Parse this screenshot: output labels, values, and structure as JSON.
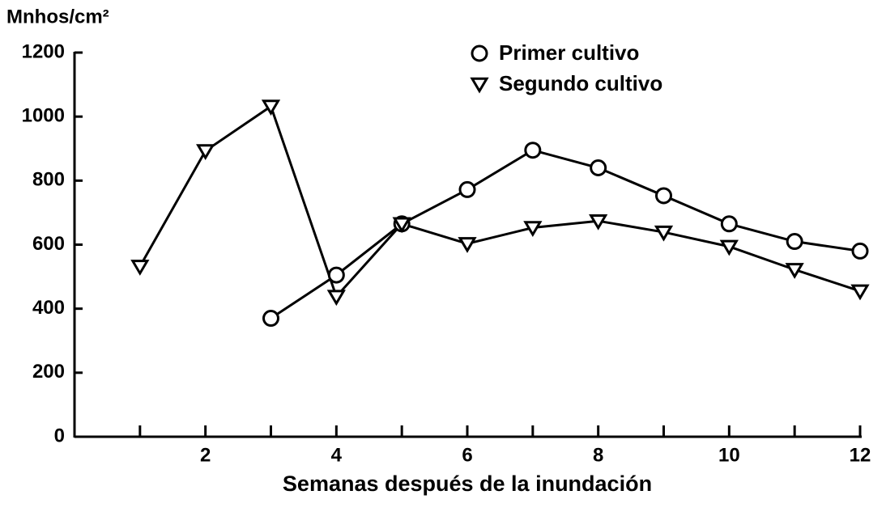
{
  "chart_data": {
    "type": "line",
    "y_label": "Mnhos/cm²",
    "x_label": "Semanas después de la inundación",
    "xlim": [
      0,
      12
    ],
    "xticks": [
      2,
      4,
      6,
      8,
      10,
      12
    ],
    "xminorticks": [
      1,
      3,
      5,
      7,
      9,
      11
    ],
    "ylim": [
      0,
      1200
    ],
    "yticks": [
      0,
      200,
      400,
      600,
      800,
      1000,
      1200
    ],
    "legend": "top",
    "series": [
      {
        "name": "Primer cultivo",
        "color": "#000000",
        "marker": "circle",
        "x": [
          3,
          4,
          5,
          6,
          7,
          8,
          9,
          10,
          11,
          12
        ],
        "values": [
          370,
          505,
          665,
          772,
          895,
          840,
          753,
          665,
          610,
          580
        ]
      },
      {
        "name": "Segundo cultivo",
        "color": "#000000",
        "marker": "triangle-down",
        "x": [
          1,
          2,
          3,
          4,
          5,
          6,
          7,
          8,
          9,
          10,
          11,
          12
        ],
        "values": [
          532,
          893,
          1032,
          438,
          665,
          603,
          653,
          674,
          639,
          594,
          522,
          455
        ]
      }
    ]
  }
}
